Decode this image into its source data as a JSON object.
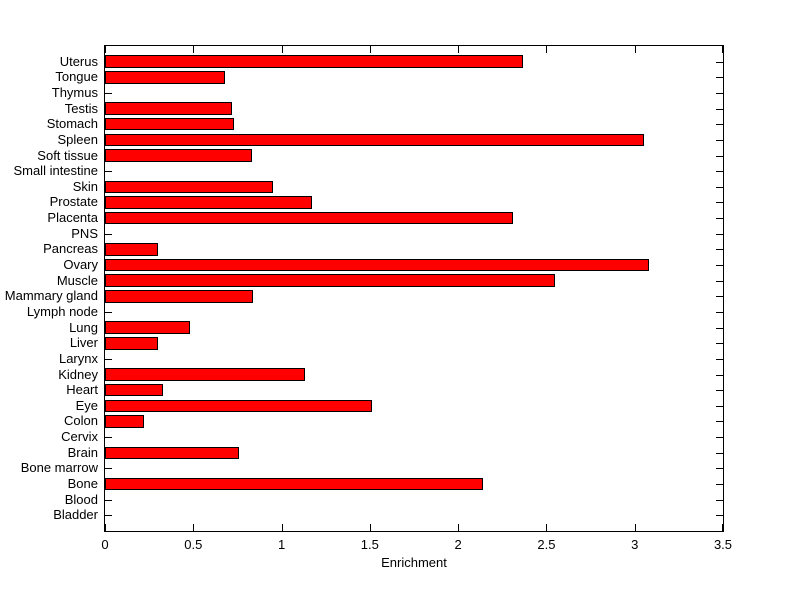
{
  "chart_data": {
    "type": "bar",
    "orientation": "horizontal",
    "title": "",
    "xlabel": "Enrichment",
    "ylabel": "",
    "xlim": [
      0,
      3.5
    ],
    "x_ticks": [
      0,
      0.5,
      1,
      1.5,
      2,
      2.5,
      3,
      3.5
    ],
    "x_tick_labels": [
      "0",
      "0.5",
      "1",
      "1.5",
      "2",
      "2.5",
      "3",
      "3.5"
    ],
    "grid": false,
    "legend": null,
    "bar_color": "#ff0000",
    "bar_edge_color": "#000000",
    "axis_color": "#000000",
    "background_color": "#ffffff",
    "categories_top_to_bottom": [
      "Uterus",
      "Tongue",
      "Thymus",
      "Testis",
      "Stomach",
      "Spleen",
      "Soft tissue",
      "Small intestine",
      "Skin",
      "Prostate",
      "Placenta",
      "PNS",
      "Pancreas",
      "Ovary",
      "Muscle",
      "Mammary gland",
      "Lymph node",
      "Lung",
      "Liver",
      "Larynx",
      "Kidney",
      "Heart",
      "Eye",
      "Colon",
      "Cervix",
      "Brain",
      "Bone marrow",
      "Bone",
      "Blood",
      "Bladder"
    ],
    "values": [
      2.37,
      0.68,
      0,
      0.72,
      0.73,
      3.05,
      0.83,
      0,
      0.95,
      1.17,
      2.31,
      0,
      0.3,
      3.08,
      2.55,
      0.84,
      0,
      0.48,
      0.3,
      0,
      1.13,
      0.33,
      1.51,
      0.22,
      0,
      0.76,
      0,
      2.14,
      0,
      0
    ]
  }
}
